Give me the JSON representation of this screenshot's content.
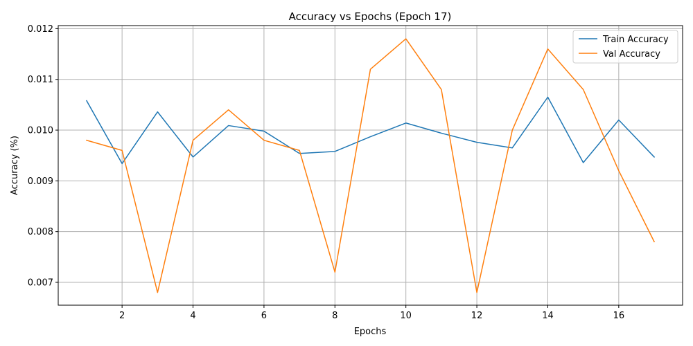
{
  "chart_data": {
    "type": "line",
    "title": "Accuracy vs Epochs (Epoch 17)",
    "xlabel": "Epochs",
    "ylabel": "Accuracy (%)",
    "x": [
      1,
      2,
      3,
      4,
      5,
      6,
      7,
      8,
      9,
      10,
      11,
      12,
      13,
      14,
      15,
      16,
      17
    ],
    "xlim": [
      0.2,
      17.8
    ],
    "ylim": [
      0.00655,
      0.01206
    ],
    "xticks": [
      2,
      4,
      6,
      8,
      10,
      12,
      14,
      16
    ],
    "xtick_labels": [
      "2",
      "4",
      "6",
      "8",
      "10",
      "12",
      "14",
      "16"
    ],
    "yticks": [
      0.007,
      0.008,
      0.009,
      0.01,
      0.011,
      0.012
    ],
    "ytick_labels": [
      "0.007",
      "0.008",
      "0.009",
      "0.010",
      "0.011",
      "0.012"
    ],
    "grid": true,
    "legend_position": "top-right",
    "series": [
      {
        "name": "Train Accuracy",
        "color": "#1f77b4",
        "values": [
          0.01058,
          0.00934,
          0.01036,
          0.00947,
          0.01009,
          0.00998,
          0.00954,
          0.00958,
          0.00987,
          0.01014,
          0.00994,
          0.00976,
          0.00965,
          0.01065,
          0.00936,
          0.0102,
          0.00947
        ]
      },
      {
        "name": "Val Accuracy",
        "color": "#ff7f0e",
        "values": [
          0.0098,
          0.0096,
          0.0068,
          0.0098,
          0.0104,
          0.0098,
          0.0096,
          0.0072,
          0.0112,
          0.0118,
          0.0108,
          0.0068,
          0.01,
          0.0116,
          0.0108,
          0.0092,
          0.0078
        ]
      }
    ]
  }
}
